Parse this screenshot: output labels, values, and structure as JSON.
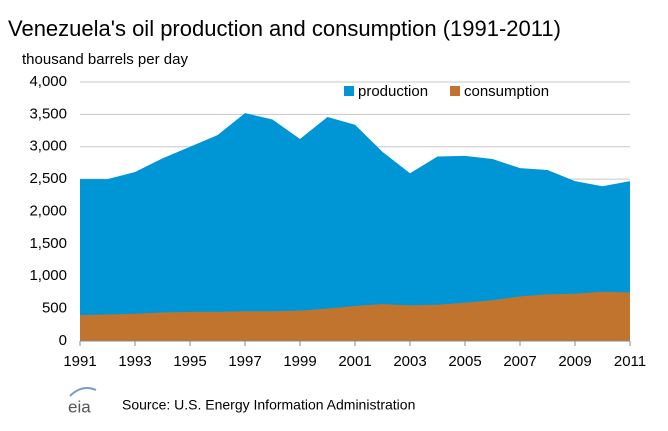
{
  "chart_data": {
    "type": "area",
    "title": "Venezuela's oil production and consumption (1991-2011)",
    "y_label": "thousand barrels per day",
    "source": "Source: U.S. Energy Information Administration",
    "logo": "eia",
    "x": [
      1991,
      1992,
      1993,
      1994,
      1995,
      1996,
      1997,
      1998,
      1999,
      2000,
      2001,
      2002,
      2003,
      2004,
      2005,
      2006,
      2007,
      2008,
      2009,
      2010,
      2011
    ],
    "series": [
      {
        "name": "production",
        "color": "#0096d6",
        "values": [
          2500,
          2500,
          2610,
          2820,
          3000,
          3180,
          3520,
          3420,
          3120,
          3460,
          3340,
          2920,
          2590,
          2850,
          2860,
          2810,
          2670,
          2640,
          2470,
          2390,
          2470
        ]
      },
      {
        "name": "consumption",
        "color": "#c1742e",
        "values": [
          400,
          410,
          420,
          440,
          450,
          450,
          460,
          460,
          470,
          500,
          540,
          570,
          550,
          560,
          590,
          630,
          690,
          720,
          730,
          760,
          750
        ]
      }
    ],
    "xlim": [
      1991,
      2011
    ],
    "xticks": [
      1991,
      1993,
      1995,
      1997,
      1999,
      2001,
      2003,
      2005,
      2007,
      2009,
      2011
    ],
    "ylim": [
      0,
      4000
    ],
    "yticks": [
      0,
      500,
      {
        "value": 1000,
        "label": "1,000"
      },
      {
        "value": 1500,
        "label": "1,500"
      },
      {
        "value": 2000,
        "label": "2,000"
      },
      {
        "value": 2500,
        "label": "2,500"
      },
      {
        "value": 3000,
        "label": "3,000"
      },
      {
        "value": 3500,
        "label": "3,500"
      },
      {
        "value": 4000,
        "label": "4,000"
      }
    ],
    "grid": true,
    "legend": "top"
  }
}
